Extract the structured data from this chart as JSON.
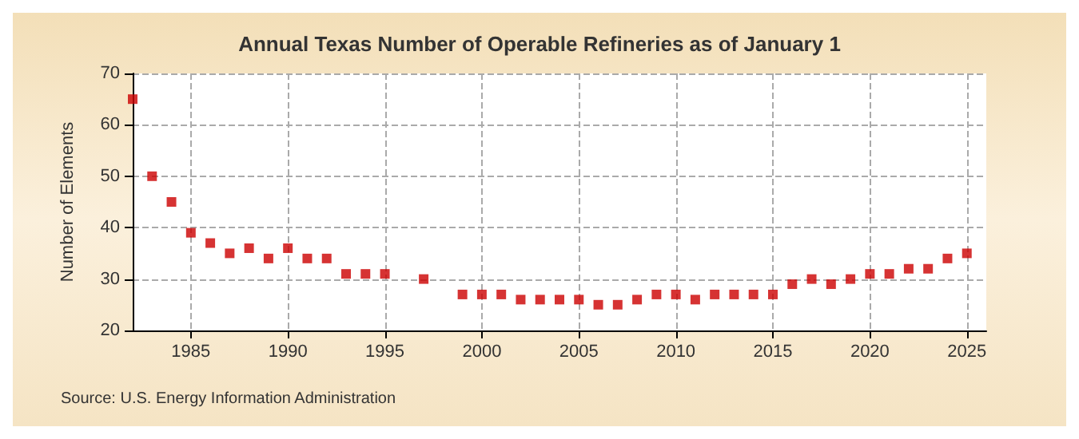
{
  "chart_data": {
    "type": "scatter",
    "title": "Annual Texas Number of Operable Refineries as of January 1",
    "ylabel": "Number of Elements",
    "x": [
      1982,
      1983,
      1984,
      1985,
      1986,
      1987,
      1988,
      1989,
      1990,
      1991,
      1992,
      1993,
      1994,
      1995,
      1997,
      1999,
      2000,
      2001,
      2002,
      2003,
      2004,
      2005,
      2006,
      2007,
      2008,
      2009,
      2010,
      2011,
      2012,
      2013,
      2014,
      2015,
      2016,
      2017,
      2018,
      2019,
      2020,
      2021,
      2022,
      2023,
      2024,
      2025
    ],
    "series": [
      {
        "color": "#cc0000",
        "values": [
          65,
          50,
          45,
          39,
          37,
          35,
          36,
          34,
          36,
          34,
          34,
          31,
          31,
          31,
          30,
          27,
          27,
          27,
          26,
          26,
          26,
          26,
          25,
          25,
          26,
          27,
          27,
          26,
          27,
          27,
          27,
          27,
          29,
          30,
          29,
          30,
          31,
          31,
          32,
          32,
          34,
          35
        ]
      }
    ],
    "xlim": [
      1982,
      2026
    ],
    "xticks": [
      1985,
      1990,
      1995,
      2000,
      2005,
      2010,
      2015,
      2020,
      2025
    ],
    "ylim": [
      20,
      70
    ],
    "yticks": [
      20,
      30,
      40,
      50,
      60,
      70
    ],
    "grid": true,
    "marker": "square",
    "annotations": [
      "Source: U.S. Energy Information Administration"
    ]
  }
}
